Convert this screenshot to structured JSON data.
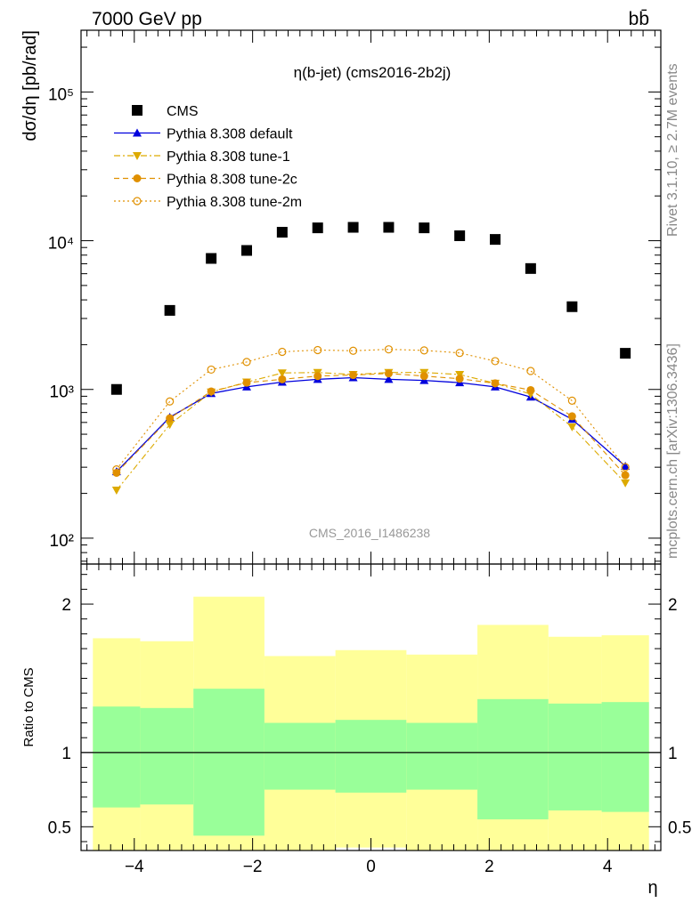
{
  "header": {
    "energy_label": "7000 GeV pp",
    "process_label": "bb̄"
  },
  "side_labels": {
    "rivet": "Rivet 3.1.10, ≥ 2.7M events",
    "mcplots": "mcplots.cern.ch [arXiv:1306.3436]"
  },
  "chart_data": [
    {
      "type": "scatter",
      "title": "η(b-jet) (cms2016-2b2j)",
      "watermark": "CMS_2016_I1486238",
      "ylabel": "dσ/dη [pb/rad]",
      "xlabel": "",
      "log_y": true,
      "xlim": [
        -4.9,
        4.9
      ],
      "ylim": [
        67,
        260000
      ],
      "x_ticks": [
        -4,
        -2,
        0,
        2,
        4
      ],
      "y_ticks": [
        {
          "value": 100,
          "label": "10²"
        },
        {
          "value": 1000,
          "label": "10³"
        },
        {
          "value": 10000,
          "label": "10⁴"
        },
        {
          "value": 100000,
          "label": "10⁵"
        }
      ],
      "legend_position": "top-left",
      "x": [
        -4.3,
        -3.4,
        -2.7,
        -2.1,
        -1.5,
        -0.9,
        -0.3,
        0.3,
        0.9,
        1.5,
        2.1,
        2.7,
        3.4,
        4.3
      ],
      "series": [
        {
          "name": "CMS",
          "color": "#000000",
          "marker": "square",
          "line": "none",
          "values": [
            1000,
            3400,
            7600,
            8600,
            11400,
            12200,
            12300,
            12300,
            12200,
            10800,
            10200,
            6500,
            3600,
            1750
          ]
        },
        {
          "name": "Pythia 8.308 default",
          "color": "#0000dd",
          "marker": "triangle-up",
          "line": "solid",
          "values": [
            280,
            650,
            940,
            1040,
            1120,
            1170,
            1200,
            1170,
            1150,
            1110,
            1040,
            890,
            630,
            305
          ]
        },
        {
          "name": "Pythia 8.308 tune-1",
          "color": "#ddaa00",
          "marker": "triangle-down",
          "line": "dashdot",
          "values": [
            210,
            580,
            960,
            1120,
            1290,
            1300,
            1260,
            1300,
            1300,
            1260,
            1100,
            930,
            560,
            235
          ]
        },
        {
          "name": "Pythia 8.308 tune-2c",
          "color": "#e09000",
          "marker": "circle",
          "line": "dashed",
          "values": [
            275,
            640,
            970,
            1110,
            1170,
            1230,
            1250,
            1280,
            1230,
            1180,
            1100,
            990,
            660,
            265
          ]
        },
        {
          "name": "Pythia 8.308 tune-2m",
          "color": "#e09000",
          "marker": "circle-open",
          "line": "dotted",
          "values": [
            290,
            830,
            1360,
            1530,
            1790,
            1840,
            1820,
            1860,
            1830,
            1760,
            1550,
            1330,
            840,
            300
          ]
        }
      ]
    },
    {
      "type": "area",
      "ylabel": "Ratio to CMS",
      "xlabel": "η",
      "xlim": [
        -4.9,
        4.9
      ],
      "ylim": [
        0.34,
        2.27
      ],
      "x_ticks": [
        -4,
        -2,
        0,
        2,
        4
      ],
      "y_ticks": [
        0.5,
        1,
        2
      ],
      "reference_line": 1,
      "bins": [
        [
          -4.7,
          -3.9
        ],
        [
          -3.9,
          -3.0
        ],
        [
          -3.0,
          -1.8
        ],
        [
          -1.8,
          -0.6
        ],
        [
          -0.6,
          0.6
        ],
        [
          0.6,
          1.8
        ],
        [
          1.8,
          3.0
        ],
        [
          3.0,
          3.9
        ],
        [
          3.9,
          4.7
        ]
      ],
      "band_inner": {
        "color": "#99ff99",
        "low": [
          0.63,
          0.65,
          0.44,
          0.75,
          0.73,
          0.75,
          0.55,
          0.61,
          0.6
        ],
        "high": [
          1.31,
          1.3,
          1.43,
          1.2,
          1.22,
          1.2,
          1.36,
          1.33,
          1.34
        ]
      },
      "band_outer": {
        "color": "#ffff99",
        "low": [
          0.34,
          0.34,
          0.34,
          0.34,
          0.36,
          0.34,
          0.34,
          0.34,
          0.34
        ],
        "high": [
          1.77,
          1.75,
          2.05,
          1.65,
          1.69,
          1.66,
          1.86,
          1.78,
          1.79
        ]
      }
    }
  ]
}
